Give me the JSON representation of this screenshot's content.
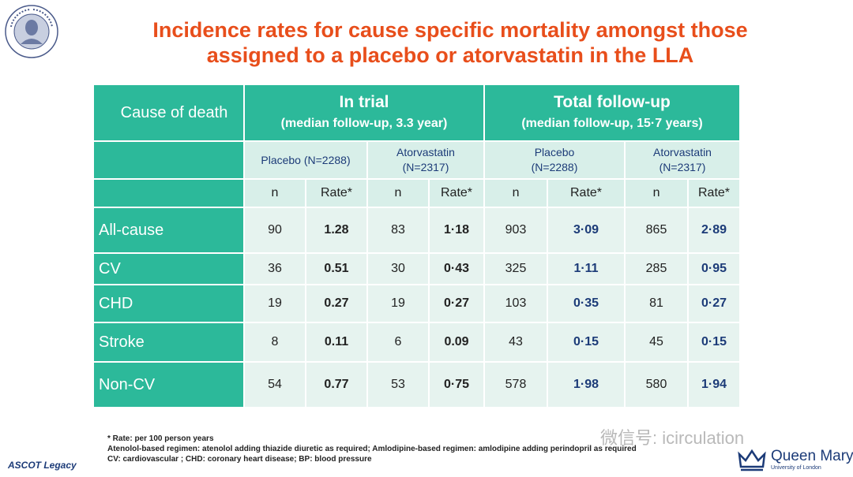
{
  "title_line1": "Incidence rates for cause specific mortality amongst those",
  "title_line2": "assigned to a placebo or atorvastatin in the LLA",
  "table": {
    "cause_header": "Cause of death",
    "in_trial": {
      "title": "In trial",
      "subtitle": "(median follow-up,  3.3 year)"
    },
    "total": {
      "title": "Total follow-up",
      "subtitle": "(median follow-up, 15·7 years)"
    },
    "groups": [
      {
        "line1": "Placebo (N=2288)",
        "line2": ""
      },
      {
        "line1": "Atorvastatin",
        "line2": "(N=2317)"
      },
      {
        "line1": "Placebo",
        "line2": "(N=2288)"
      },
      {
        "line1": "Atorvastatin",
        "line2": "(N=2317)"
      }
    ],
    "n_label": "n",
    "rate_label": "Rate*",
    "rows": [
      {
        "label": "All-cause",
        "values": [
          "90",
          "1.28",
          "83",
          "1·18",
          "903",
          "3·09",
          "865",
          "2·89"
        ]
      },
      {
        "label": "CV",
        "values": [
          "36",
          "0.51",
          "30",
          "0·43",
          "325",
          "1·11",
          "285",
          "0·95"
        ]
      },
      {
        "label": "CHD",
        "values": [
          "19",
          "0.27",
          "19",
          "0·27",
          "103",
          "0·35",
          "81",
          "0·27"
        ]
      },
      {
        "label": "Stroke",
        "values": [
          "8",
          "0.11",
          "6",
          "0.09",
          "43",
          "0·15",
          "45",
          "0·15"
        ]
      },
      {
        "label": "Non-CV",
        "values": [
          "54",
          "0.77",
          "53",
          "0·75",
          "578",
          "1·98",
          "580",
          "1·94"
        ]
      }
    ]
  },
  "footnotes": [
    "* Rate: per 100 person years",
    "Atenolol-based regimen: atenolol adding thiazide diuretic as required; Amlodipine-based regimen: amlodipine adding perindopril as required",
    "CV: cardiovascular ; CHD: coronary heart disease; BP: blood pressure"
  ],
  "ascot_logo": "ASCOT Legacy",
  "watermark": "微信号: icirculation",
  "qm_name": "Queen Mary",
  "qm_sub": "University of London",
  "colors": {
    "accent": "#2cb99a",
    "title": "#e84e1b",
    "navy": "#1c3b78"
  }
}
